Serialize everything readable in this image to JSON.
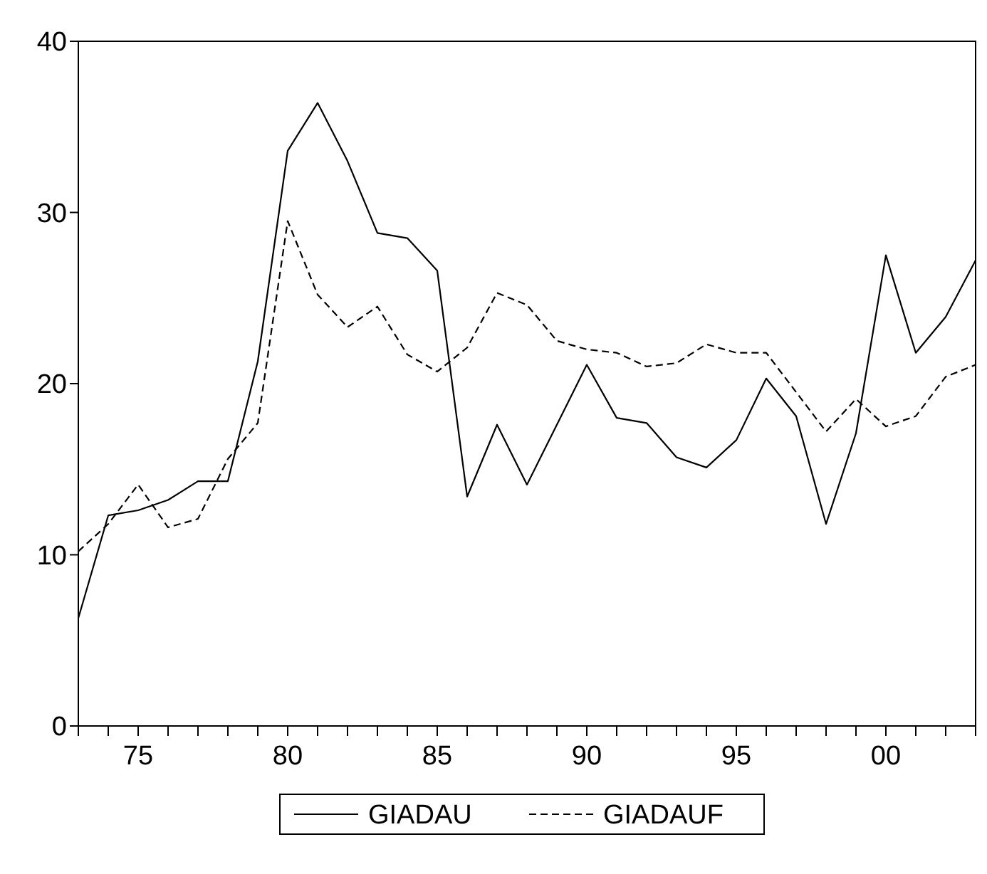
{
  "chart_data": {
    "type": "line",
    "x": [
      1973,
      1974,
      1975,
      1976,
      1977,
      1978,
      1979,
      1980,
      1981,
      1982,
      1983,
      1984,
      1985,
      1986,
      1987,
      1988,
      1989,
      1990,
      1991,
      1992,
      1993,
      1994,
      1995,
      1996,
      1997,
      1998,
      1999,
      2000,
      2001,
      2002,
      2003
    ],
    "series": [
      {
        "name": "GIADAU",
        "color": "#000000",
        "line_style": "solid",
        "values": [
          6.3,
          12.3,
          12.6,
          13.2,
          14.3,
          14.3,
          21.3,
          33.6,
          36.4,
          33.0,
          28.8,
          28.5,
          26.6,
          13.4,
          17.6,
          14.1,
          17.6,
          21.1,
          18.0,
          17.7,
          15.7,
          15.1,
          16.7,
          20.3,
          18.1,
          11.8,
          17.1,
          27.5,
          21.8,
          23.9,
          27.2
        ]
      },
      {
        "name": "GIADAUF",
        "color": "#000000",
        "line_style": "dashed",
        "values": [
          10.2,
          11.8,
          14.1,
          11.6,
          12.1,
          15.6,
          17.7,
          29.5,
          25.2,
          23.3,
          24.5,
          21.7,
          20.7,
          22.1,
          25.3,
          24.6,
          22.5,
          22.0,
          21.8,
          21.0,
          21.2,
          22.3,
          21.8,
          21.8,
          19.5,
          17.2,
          19.1,
          17.5,
          18.1,
          20.4,
          21.1
        ]
      }
    ],
    "xlim": [
      1973,
      2003
    ],
    "xticks": [
      {
        "value": 1973,
        "label": null
      },
      {
        "value": 1974,
        "label": null
      },
      {
        "value": 1975,
        "label": "75"
      },
      {
        "value": 1976,
        "label": null
      },
      {
        "value": 1977,
        "label": null
      },
      {
        "value": 1978,
        "label": null
      },
      {
        "value": 1979,
        "label": null
      },
      {
        "value": 1980,
        "label": "80"
      },
      {
        "value": 1981,
        "label": null
      },
      {
        "value": 1982,
        "label": null
      },
      {
        "value": 1983,
        "label": null
      },
      {
        "value": 1984,
        "label": null
      },
      {
        "value": 1985,
        "label": "85"
      },
      {
        "value": 1986,
        "label": null
      },
      {
        "value": 1987,
        "label": null
      },
      {
        "value": 1988,
        "label": null
      },
      {
        "value": 1989,
        "label": null
      },
      {
        "value": 1990,
        "label": "90"
      },
      {
        "value": 1991,
        "label": null
      },
      {
        "value": 1992,
        "label": null
      },
      {
        "value": 1993,
        "label": null
      },
      {
        "value": 1994,
        "label": null
      },
      {
        "value": 1995,
        "label": "95"
      },
      {
        "value": 1996,
        "label": null
      },
      {
        "value": 1997,
        "label": null
      },
      {
        "value": 1998,
        "label": null
      },
      {
        "value": 1999,
        "label": null
      },
      {
        "value": 2000,
        "label": "00"
      },
      {
        "value": 2001,
        "label": null
      },
      {
        "value": 2002,
        "label": null
      },
      {
        "value": 2003,
        "label": null
      }
    ],
    "ylim": [
      0,
      40
    ],
    "yticks": [
      0,
      10,
      20,
      30,
      40
    ],
    "grid": false,
    "legend": "bottom",
    "marker": "none"
  }
}
